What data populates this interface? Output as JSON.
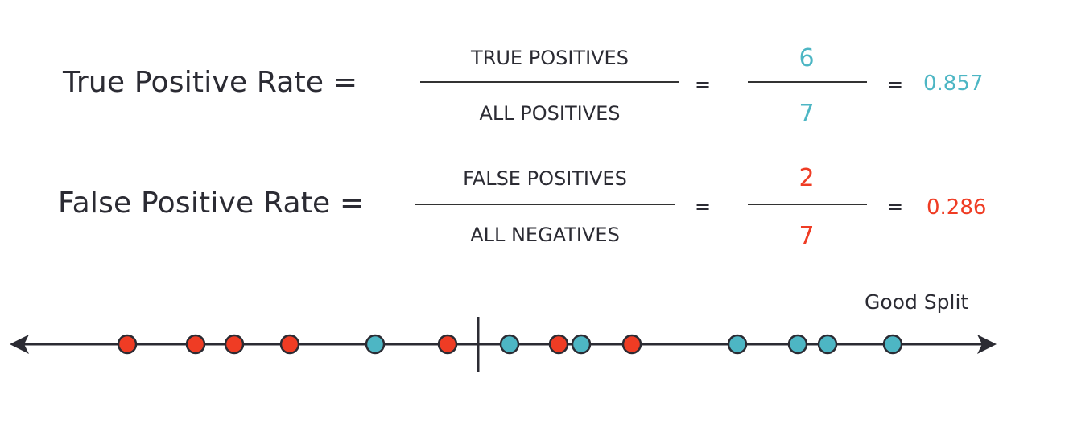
{
  "colors": {
    "positive": "#4db6c4",
    "negative": "#ef3c24",
    "text": "#2b2b33"
  },
  "tpr": {
    "label": "True Positive Rate =",
    "numerator_term": "TRUE POSITIVES",
    "denominator_term": "ALL POSITIVES",
    "equals_1": "=",
    "numerator_value": "6",
    "denominator_value": "7",
    "equals_2": "=",
    "result": "0.857"
  },
  "fpr": {
    "label": "False Positive Rate =",
    "numerator_term": "FALSE POSITIVES",
    "denominator_term": "ALL NEGATIVES",
    "equals_1": "=",
    "numerator_value": "2",
    "denominator_value": "7",
    "equals_2": "=",
    "result": "0.286"
  },
  "number_line": {
    "split_label": "Good Split",
    "points": [
      {
        "class": "negative"
      },
      {
        "class": "negative"
      },
      {
        "class": "negative"
      },
      {
        "class": "negative"
      },
      {
        "class": "positive"
      },
      {
        "class": "negative"
      },
      {
        "class": "positive"
      },
      {
        "class": "negative"
      },
      {
        "class": "positive"
      },
      {
        "class": "negative"
      },
      {
        "class": "positive"
      },
      {
        "class": "positive"
      },
      {
        "class": "positive"
      },
      {
        "class": "positive"
      }
    ]
  }
}
